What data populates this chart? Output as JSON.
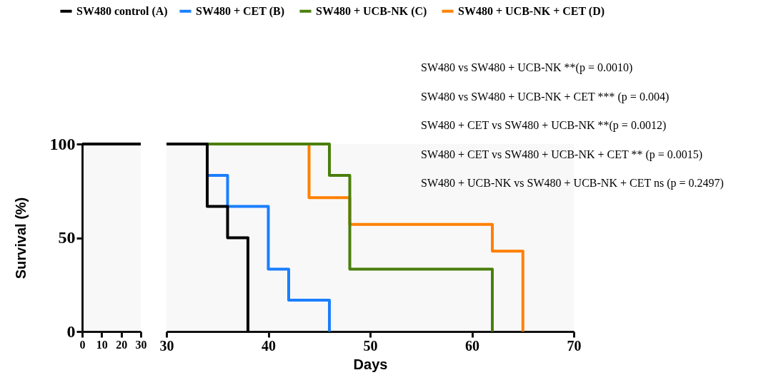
{
  "chart_data": [
    {
      "type": "step",
      "ylabel": "Survival (%)",
      "xlim": [
        0,
        30
      ],
      "xticks": [
        0,
        10,
        20,
        30
      ],
      "ylim": [
        0,
        100
      ],
      "yticks": [
        0,
        50,
        100
      ],
      "grid": false,
      "marker": "none",
      "line_style": "solid",
      "series": [
        {
          "color": "#000000",
          "x": [
            0,
            30
          ],
          "values": [
            100,
            100
          ]
        }
      ]
    },
    {
      "type": "step",
      "xlabel": "Days",
      "xlim": [
        30,
        70
      ],
      "xticks": [
        30,
        40,
        50,
        60,
        70
      ],
      "ylim": [
        0,
        100
      ],
      "yticks": [
        0,
        50,
        100
      ],
      "tick_labels": "x",
      "grid": false,
      "legend": "top",
      "marker": "none",
      "line_style": "solid",
      "annotations": [
        "SW480 vs SW480 + UCB-NK **(p = 0.0010)",
        "SW480 vs SW480 + UCB-NK + CET *** (p = 0.004)",
        "SW480 + CET  vs SW480 + UCB-NK **(p = 0.0012)",
        "SW480 + CET vs SW480 + UCB-NK + CET ** (p = 0.0015)",
        "SW480 + UCB-NK vs SW480 + UCB-NK + CET  ns (p = 0.2497)"
      ],
      "series": [
        {
          "name": "SW480 control (A)",
          "color": "#000000",
          "x": [
            30,
            34,
            36,
            38
          ],
          "values": [
            100,
            66.7,
            50,
            0
          ]
        },
        {
          "name": "SW480  + CET (B)",
          "color": "#1a7fff",
          "x": [
            34,
            36,
            40,
            42,
            46
          ],
          "values": [
            83.3,
            66.7,
            33.3,
            16.7,
            0
          ]
        },
        {
          "name": "SW480  + UCB-NK (C)",
          "color": "#4a7f0c",
          "x": [
            34,
            46,
            48,
            62
          ],
          "values": [
            100,
            83.3,
            33.3,
            0
          ]
        },
        {
          "name": "SW480  + UCB-NK + CET (D)",
          "color": "#ff8000",
          "x": [
            44,
            44,
            48,
            62,
            65
          ],
          "values": [
            100,
            71.4,
            57.1,
            42.9,
            0
          ]
        }
      ]
    }
  ]
}
